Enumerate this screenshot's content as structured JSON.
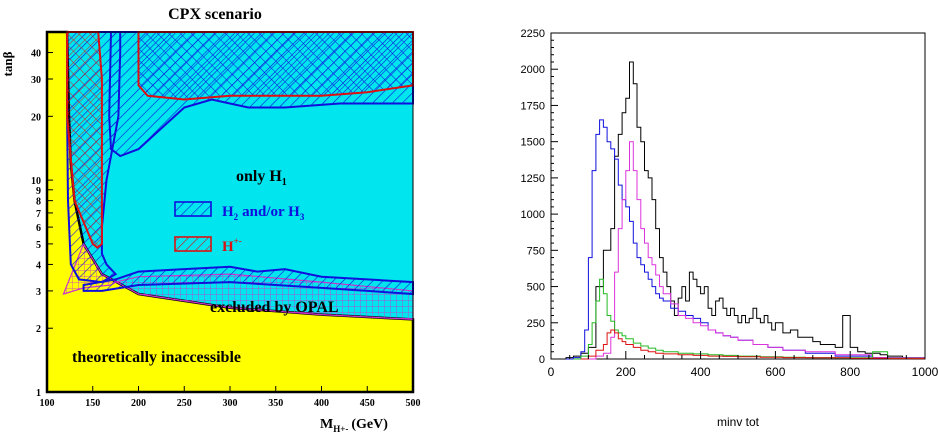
{
  "colors": {
    "theory_region": "#ffff00",
    "only_h1": "#00e5ee",
    "h2h3": "#1010dd",
    "hpm": "#dd1111",
    "opal_hatch": "#cc33cc",
    "opal_excl": "#9a9a9a"
  },
  "chart_data": [
    {
      "type": "area",
      "title": "CPX scenario",
      "xlabel": "M",
      "xlabel_sub": "H+-",
      "xlabel_unit": "(GeV)",
      "ylabel": "tanβ",
      "xlim": [
        100,
        500
      ],
      "ylim": [
        1,
        50
      ],
      "yscale": "log",
      "xticks": [
        100,
        150,
        200,
        250,
        300,
        350,
        400,
        450,
        500
      ],
      "yticks": [
        1,
        2,
        3,
        4,
        5,
        6,
        7,
        8,
        9,
        10,
        20,
        30,
        40
      ],
      "annotations": {
        "only_h1": {
          "text": "only H",
          "sub": "1"
        },
        "legend_h2h3": {
          "text": "H",
          "sub": "2",
          "tail": "and/or H",
          "tail_sub": "3"
        },
        "legend_hpm": {
          "text": "H",
          "sup": "+-"
        },
        "excluded": "excluded by OPAL",
        "theory": "theoretically inaccessible"
      },
      "regions": {
        "theoretically_inaccessible_boundary": [
          [
            122,
            50
          ],
          [
            124,
            20
          ],
          [
            126,
            12
          ],
          [
            130,
            8
          ],
          [
            140,
            5
          ],
          [
            160,
            3.6
          ],
          [
            200,
            2.9
          ],
          [
            300,
            2.5
          ],
          [
            400,
            2.32
          ],
          [
            500,
            2.2
          ]
        ],
        "h2h3_upper": [
          [
            200,
            14
          ],
          [
            250,
            22
          ],
          [
            280,
            24
          ],
          [
            320,
            22
          ],
          [
            360,
            22
          ],
          [
            420,
            23
          ],
          [
            500,
            23
          ]
        ],
        "hpm_top": [
          [
            156,
            50
          ],
          [
            160,
            30
          ],
          [
            200,
            25
          ],
          [
            250,
            24
          ],
          [
            300,
            25
          ],
          [
            350,
            25
          ],
          [
            400,
            25
          ],
          [
            500,
            28
          ]
        ],
        "h2h3_lower_band": [
          [
            175,
            3.3
          ],
          [
            200,
            3.5
          ],
          [
            300,
            3.6
          ],
          [
            400,
            3.3
          ],
          [
            500,
            3.0
          ]
        ]
      }
    },
    {
      "type": "line",
      "xlabel": "minv tot",
      "xlim": [
        0,
        1000
      ],
      "ylim": [
        0,
        2250
      ],
      "xticks": [
        0,
        200,
        400,
        600,
        800,
        1000
      ],
      "yticks": [
        0,
        250,
        500,
        750,
        1000,
        1250,
        1500,
        1750,
        2000,
        2250
      ],
      "series": [
        {
          "color": "#000000",
          "points": [
            [
              0,
              0
            ],
            [
              40,
              10
            ],
            [
              60,
              20
            ],
            [
              80,
              40
            ],
            [
              100,
              80
            ],
            [
              120,
              500
            ],
            [
              140,
              750
            ],
            [
              160,
              900
            ],
            [
              170,
              1400
            ],
            [
              180,
              1550
            ],
            [
              190,
              1700
            ],
            [
              200,
              1800
            ],
            [
              210,
              2050
            ],
            [
              220,
              1900
            ],
            [
              230,
              1600
            ],
            [
              240,
              1500
            ],
            [
              250,
              1300
            ],
            [
              260,
              1250
            ],
            [
              270,
              1100
            ],
            [
              280,
              900
            ],
            [
              290,
              700
            ],
            [
              300,
              600
            ],
            [
              310,
              500
            ],
            [
              320,
              400
            ],
            [
              330,
              300
            ],
            [
              340,
              420
            ],
            [
              350,
              500
            ],
            [
              360,
              400
            ],
            [
              370,
              600
            ],
            [
              380,
              550
            ],
            [
              390,
              500
            ],
            [
              400,
              450
            ],
            [
              410,
              500
            ],
            [
              420,
              350
            ],
            [
              430,
              300
            ],
            [
              440,
              400
            ],
            [
              450,
              420
            ],
            [
              460,
              350
            ],
            [
              470,
              300
            ],
            [
              480,
              350
            ],
            [
              490,
              300
            ],
            [
              500,
              250
            ],
            [
              510,
              300
            ],
            [
              520,
              250
            ],
            [
              530,
              280
            ],
            [
              540,
              350
            ],
            [
              550,
              280
            ],
            [
              560,
              250
            ],
            [
              570,
              300
            ],
            [
              580,
              250
            ],
            [
              590,
              200
            ],
            [
              600,
              250
            ],
            [
              620,
              180
            ],
            [
              640,
              200
            ],
            [
              660,
              150
            ],
            [
              680,
              150
            ],
            [
              700,
              120
            ],
            [
              720,
              100
            ],
            [
              740,
              100
            ],
            [
              760,
              80
            ],
            [
              780,
              300
            ],
            [
              800,
              80
            ],
            [
              820,
              50
            ],
            [
              840,
              40
            ],
            [
              860,
              40
            ],
            [
              880,
              30
            ],
            [
              900,
              20
            ],
            [
              940,
              10
            ],
            [
              1000,
              0
            ]
          ]
        },
        {
          "color": "#1010dd",
          "points": [
            [
              40,
              0
            ],
            [
              60,
              10
            ],
            [
              80,
              50
            ],
            [
              90,
              200
            ],
            [
              100,
              700
            ],
            [
              110,
              1300
            ],
            [
              120,
              1550
            ],
            [
              130,
              1650
            ],
            [
              140,
              1600
            ],
            [
              150,
              1500
            ],
            [
              160,
              1450
            ],
            [
              170,
              1380
            ],
            [
              180,
              1200
            ],
            [
              190,
              1100
            ],
            [
              200,
              1050
            ],
            [
              210,
              950
            ],
            [
              220,
              800
            ],
            [
              230,
              700
            ],
            [
              240,
              650
            ],
            [
              250,
              600
            ],
            [
              260,
              550
            ],
            [
              270,
              500
            ],
            [
              280,
              450
            ],
            [
              290,
              420
            ],
            [
              300,
              400
            ],
            [
              320,
              350
            ],
            [
              340,
              330
            ],
            [
              360,
              300
            ],
            [
              380,
              280
            ],
            [
              400,
              250
            ],
            [
              420,
              200
            ],
            [
              440,
              180
            ],
            [
              460,
              160
            ],
            [
              480,
              150
            ],
            [
              500,
              130
            ],
            [
              540,
              100
            ],
            [
              580,
              80
            ],
            [
              620,
              60
            ],
            [
              680,
              40
            ],
            [
              760,
              20
            ],
            [
              860,
              10
            ],
            [
              1000,
              0
            ]
          ]
        },
        {
          "color": "#dd33dd",
          "points": [
            [
              100,
              0
            ],
            [
              120,
              20
            ],
            [
              140,
              40
            ],
            [
              160,
              150
            ],
            [
              170,
              600
            ],
            [
              180,
              900
            ],
            [
              190,
              1100
            ],
            [
              200,
              1300
            ],
            [
              210,
              1500
            ],
            [
              220,
              1300
            ],
            [
              230,
              1100
            ],
            [
              240,
              900
            ],
            [
              250,
              800
            ],
            [
              260,
              700
            ],
            [
              270,
              650
            ],
            [
              280,
              580
            ],
            [
              290,
              500
            ],
            [
              300,
              450
            ],
            [
              320,
              380
            ],
            [
              340,
              300
            ],
            [
              360,
              280
            ],
            [
              380,
              250
            ],
            [
              400,
              230
            ],
            [
              420,
              200
            ],
            [
              440,
              180
            ],
            [
              460,
              160
            ],
            [
              480,
              150
            ],
            [
              500,
              130
            ],
            [
              540,
              100
            ],
            [
              580,
              80
            ],
            [
              620,
              60
            ],
            [
              680,
              50
            ],
            [
              760,
              30
            ],
            [
              860,
              10
            ],
            [
              1000,
              0
            ]
          ]
        },
        {
          "color": "#22bb22",
          "points": [
            [
              60,
              0
            ],
            [
              80,
              20
            ],
            [
              100,
              100
            ],
            [
              110,
              250
            ],
            [
              120,
              400
            ],
            [
              130,
              550
            ],
            [
              140,
              450
            ],
            [
              150,
              300
            ],
            [
              160,
              260
            ],
            [
              170,
              200
            ],
            [
              180,
              180
            ],
            [
              190,
              160
            ],
            [
              200,
              140
            ],
            [
              220,
              110
            ],
            [
              240,
              90
            ],
            [
              260,
              75
            ],
            [
              280,
              60
            ],
            [
              300,
              50
            ],
            [
              340,
              40
            ],
            [
              380,
              35
            ],
            [
              420,
              30
            ],
            [
              460,
              25
            ],
            [
              500,
              20
            ],
            [
              560,
              15
            ],
            [
              620,
              12
            ],
            [
              680,
              10
            ],
            [
              760,
              8
            ],
            [
              860,
              50
            ],
            [
              900,
              5
            ],
            [
              1000,
              0
            ]
          ]
        },
        {
          "color": "#dd1111",
          "points": [
            [
              80,
              0
            ],
            [
              100,
              20
            ],
            [
              120,
              60
            ],
            [
              140,
              100
            ],
            [
              150,
              180
            ],
            [
              160,
              200
            ],
            [
              170,
              180
            ],
            [
              180,
              140
            ],
            [
              190,
              120
            ],
            [
              200,
              100
            ],
            [
              220,
              80
            ],
            [
              240,
              60
            ],
            [
              260,
              50
            ],
            [
              280,
              40
            ],
            [
              300,
              35
            ],
            [
              340,
              30
            ],
            [
              380,
              25
            ],
            [
              420,
              20
            ],
            [
              460,
              18
            ],
            [
              500,
              15
            ],
            [
              560,
              12
            ],
            [
              620,
              10
            ],
            [
              700,
              8
            ],
            [
              800,
              5
            ],
            [
              900,
              3
            ],
            [
              1000,
              0
            ]
          ]
        }
      ]
    }
  ]
}
